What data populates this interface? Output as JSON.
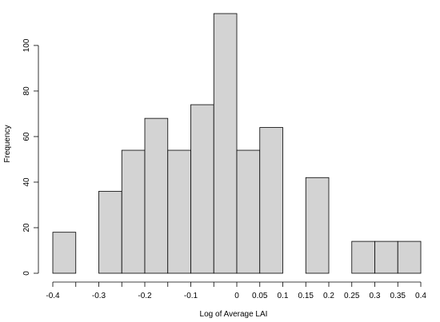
{
  "chart_data": {
    "type": "bar",
    "subtype": "histogram",
    "title": "",
    "xlabel": "Log of Average LAI",
    "ylabel": "Frequency",
    "xlim": [
      -0.4,
      0.4
    ],
    "ylim": [
      0,
      114
    ],
    "bin_width": 0.05,
    "bins": [
      {
        "x0": -0.4,
        "x1": -0.35,
        "count": 18
      },
      {
        "x0": -0.35,
        "x1": -0.3,
        "count": 0
      },
      {
        "x0": -0.3,
        "x1": -0.25,
        "count": 36
      },
      {
        "x0": -0.25,
        "x1": -0.2,
        "count": 54
      },
      {
        "x0": -0.2,
        "x1": -0.15,
        "count": 68
      },
      {
        "x0": -0.15,
        "x1": -0.1,
        "count": 54
      },
      {
        "x0": -0.1,
        "x1": -0.05,
        "count": 74
      },
      {
        "x0": -0.05,
        "x1": 0.0,
        "count": 114
      },
      {
        "x0": 0.0,
        "x1": 0.05,
        "count": 54
      },
      {
        "x0": 0.05,
        "x1": 0.1,
        "count": 64
      },
      {
        "x0": 0.1,
        "x1": 0.15,
        "count": 0
      },
      {
        "x0": 0.15,
        "x1": 0.2,
        "count": 42
      },
      {
        "x0": 0.2,
        "x1": 0.25,
        "count": 0
      },
      {
        "x0": 0.25,
        "x1": 0.3,
        "count": 14
      },
      {
        "x0": 0.3,
        "x1": 0.35,
        "count": 14
      },
      {
        "x0": 0.35,
        "x1": 0.4,
        "count": 14
      }
    ],
    "x_ticks": [
      {
        "value": -0.4,
        "label": "-0.4"
      },
      {
        "value": -0.35,
        "label": ""
      },
      {
        "value": -0.3,
        "label": "-0.3"
      },
      {
        "value": -0.25,
        "label": ""
      },
      {
        "value": -0.2,
        "label": "-0.2"
      },
      {
        "value": -0.15,
        "label": ""
      },
      {
        "value": -0.1,
        "label": "-0.1"
      },
      {
        "value": -0.05,
        "label": ""
      },
      {
        "value": 0.0,
        "label": "0"
      },
      {
        "value": 0.05,
        "label": "0.05"
      },
      {
        "value": 0.1,
        "label": "0.1"
      },
      {
        "value": 0.15,
        "label": "0.15"
      },
      {
        "value": 0.2,
        "label": "0.2"
      },
      {
        "value": 0.25,
        "label": "0.25"
      },
      {
        "value": 0.3,
        "label": "0.3"
      },
      {
        "value": 0.35,
        "label": "0.35"
      },
      {
        "value": 0.4,
        "label": "0.4"
      }
    ],
    "y_ticks": [
      {
        "value": 0,
        "label": "0"
      },
      {
        "value": 20,
        "label": "20"
      },
      {
        "value": 40,
        "label": "40"
      },
      {
        "value": 60,
        "label": "60"
      },
      {
        "value": 80,
        "label": "80"
      },
      {
        "value": 100,
        "label": "100"
      }
    ],
    "bar_fill": "#d3d3d3",
    "bar_stroke": "#000000",
    "grid": false,
    "legend": "none"
  }
}
